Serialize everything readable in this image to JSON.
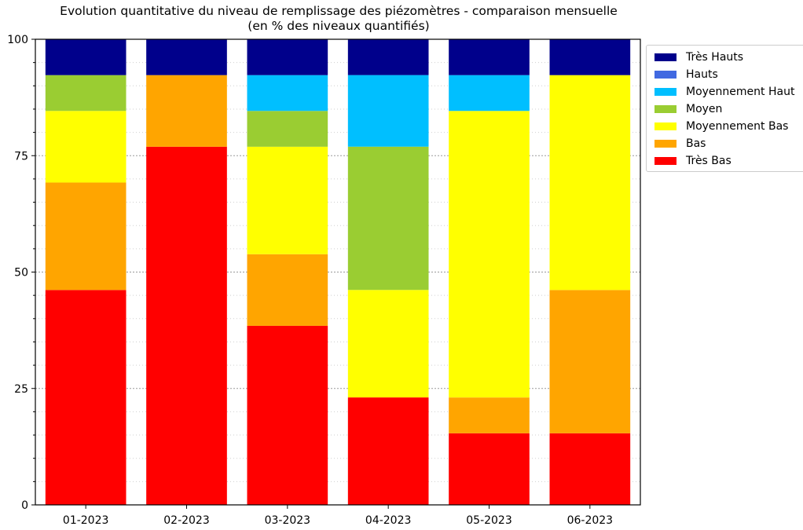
{
  "chart_data": {
    "type": "bar",
    "stacked": true,
    "title": "Evolution quantitative du niveau de remplissage des piézomètres - comparaison mensuelle",
    "subtitle": "(en % des niveaux quantifiés)",
    "xlabel": "",
    "ylabel": "",
    "ylim": [
      0,
      100
    ],
    "yticks": [
      "0",
      "25",
      "50",
      "75",
      "100"
    ],
    "grid": "horizontal dotted",
    "legend_position": "right",
    "categories": [
      "01-2023",
      "02-2023",
      "03-2023",
      "04-2023",
      "05-2023",
      "06-2023"
    ],
    "series": [
      {
        "name": "Très Bas",
        "color": "#ff0000",
        "values": [
          46.15,
          76.92,
          38.46,
          23.08,
          15.38,
          15.38
        ]
      },
      {
        "name": "Bas",
        "color": "#ffa500",
        "values": [
          23.08,
          15.38,
          15.38,
          0,
          7.69,
          30.77
        ]
      },
      {
        "name": "Moyennement Bas",
        "color": "#ffff00",
        "values": [
          15.38,
          0,
          23.08,
          23.08,
          61.54,
          46.15
        ]
      },
      {
        "name": "Moyen",
        "color": "#9acd32",
        "values": [
          7.69,
          0,
          7.69,
          30.77,
          0,
          0
        ]
      },
      {
        "name": "Moyennement Haut",
        "color": "#00bfff",
        "values": [
          0,
          0,
          7.69,
          15.38,
          7.69,
          0
        ]
      },
      {
        "name": "Hauts",
        "color": "#4169e1",
        "values": [
          0,
          0,
          0,
          0,
          0,
          0
        ]
      },
      {
        "name": "Très Hauts",
        "color": "#00008b",
        "values": [
          7.69,
          7.69,
          7.69,
          7.69,
          7.69,
          7.69
        ]
      }
    ],
    "legend_order": [
      "Très Hauts",
      "Hauts",
      "Moyennement Haut",
      "Moyen",
      "Moyennement Bas",
      "Bas",
      "Très Bas"
    ]
  }
}
